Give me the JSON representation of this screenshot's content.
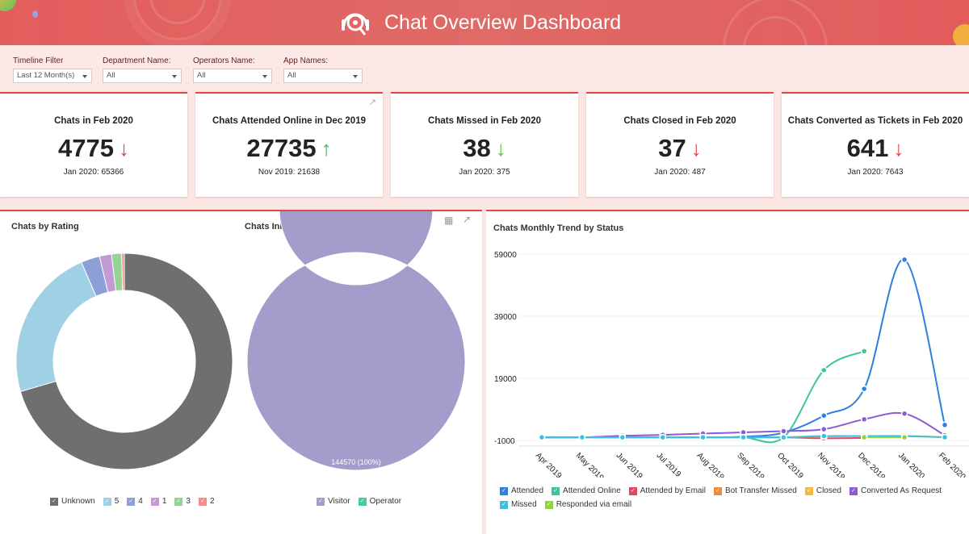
{
  "header": {
    "title": "Chat Overview Dashboard",
    "logo_icon": "headset-search-icon"
  },
  "filters": [
    {
      "label": "Timeline Filter",
      "value": "Last 12 Month(s)"
    },
    {
      "label": "Department Name:",
      "value": "All"
    },
    {
      "label": "Operators Name:",
      "value": "All"
    },
    {
      "label": "App Names:",
      "value": "All"
    }
  ],
  "cards": [
    {
      "title": "Chats in Feb 2020",
      "value": "4775",
      "trend": "down",
      "trend_color": "#e04040",
      "compare": "Jan 2020: 65366"
    },
    {
      "title": "Chats Attended Online in Dec 2019",
      "value": "27735",
      "trend": "up",
      "trend_color": "#3cb55a",
      "compare": "Nov 2019: 21638"
    },
    {
      "title": "Chats Missed in Feb 2020",
      "value": "38",
      "trend": "down",
      "trend_color": "#5cc43c",
      "compare": "Jan 2020: 375"
    },
    {
      "title": "Chats Closed in Feb 2020",
      "value": "37",
      "trend": "down",
      "trend_color": "#e04040",
      "compare": "Jan 2020: 487"
    },
    {
      "title": "Chats Converted as Tickets in Feb 2020",
      "value": "641",
      "trend": "down",
      "trend_color": "#e04040",
      "compare": "Jan 2020: 7643"
    }
  ],
  "chart_data": [
    {
      "type": "pie",
      "title": "Chats by Rating",
      "donut": true,
      "categories": [
        "Unknown",
        "5",
        "4",
        "1",
        "3",
        "2"
      ],
      "values": [
        70.5,
        23,
        2.8,
        1.8,
        1.5,
        0.4
      ],
      "colors": [
        "#6f6f6f",
        "#9fd0e4",
        "#8c9fd6",
        "#c49ad4",
        "#94d394",
        "#ef8f8f"
      ],
      "legend": "bottom"
    },
    {
      "type": "pie",
      "title": "Chats Initiated By",
      "donut": true,
      "categories": [
        "Visitor",
        "Operator"
      ],
      "values": [
        144570,
        0
      ],
      "colors": [
        "#a49ccb",
        "#45c9a8"
      ],
      "data_label": "144570 (100%)",
      "legend": "bottom"
    },
    {
      "type": "line",
      "title": "Chats Monthly Trend by Status",
      "legend": "bottom",
      "grid": true,
      "x": [
        "Apr 2019",
        "May 2019",
        "Jun 2019",
        "Jul 2019",
        "Aug 2019",
        "Sep 2019",
        "Oct 2019",
        "Nov 2019",
        "Dec 2019",
        "Jan 2020",
        "Feb 2020"
      ],
      "yticks": [
        59000,
        39000,
        19000,
        -1000
      ],
      "ylim": [
        -1000,
        61000
      ],
      "series": [
        {
          "name": "Attended",
          "color": "#2d7fe0",
          "values": [
            0,
            0,
            0,
            0,
            0,
            200,
            1500,
            7000,
            15600,
            57200,
            4000
          ]
        },
        {
          "name": "Attended Online",
          "color": "#3cc4a0",
          "values": [
            0,
            0,
            0,
            0,
            0,
            0,
            0,
            21638,
            27735,
            null,
            null
          ]
        },
        {
          "name": "Attended by Email",
          "color": "#e04860",
          "values": [
            0,
            0,
            0,
            0,
            0,
            0,
            0,
            -300,
            -200,
            null,
            null
          ]
        },
        {
          "name": "Bot Transfer Missed",
          "color": "#f08a3c",
          "values": [
            null,
            null,
            null,
            null,
            0,
            null,
            null,
            null,
            null,
            null,
            null
          ]
        },
        {
          "name": "Closed",
          "color": "#f5b942",
          "values": [
            0,
            0,
            0,
            0,
            0,
            0,
            0,
            300,
            400,
            487,
            37
          ]
        },
        {
          "name": "Converted As Request",
          "color": "#8a5cd6",
          "values": [
            0,
            0,
            500,
            800,
            1200,
            1600,
            2000,
            2600,
            5800,
            7643,
            641
          ]
        },
        {
          "name": "Missed",
          "color": "#3cbfe0",
          "values": [
            0,
            0,
            0,
            0,
            0,
            0,
            0,
            400,
            400,
            375,
            38
          ]
        },
        {
          "name": "Responded via email",
          "color": "#8fd43c",
          "values": [
            null,
            null,
            null,
            null,
            null,
            null,
            null,
            null,
            0,
            0,
            null
          ]
        }
      ]
    }
  ]
}
